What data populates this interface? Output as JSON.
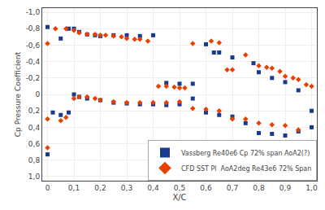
{
  "chart_data": {
    "type": "scatter",
    "xlabel": "X/C",
    "ylabel": "Cp Pressure Coefficient",
    "xlim": [
      -0.02,
      1.02
    ],
    "ylim": [
      1.05,
      -1.05
    ],
    "xticks": [
      0,
      {
        "value": 0.1,
        "label": "0,1"
      },
      {
        "value": 0.2,
        "label": "0,2"
      },
      {
        "value": 0.3,
        "label": "0,3"
      },
      {
        "value": 0.4,
        "label": "0,4"
      },
      {
        "value": 0.5,
        "label": "0,5"
      },
      {
        "value": 0.6,
        "label": "0,6"
      },
      {
        "value": 0.7,
        "label": "0,7"
      },
      {
        "value": 0.8,
        "label": "0,8"
      },
      {
        "value": 0.9,
        "label": "0,9"
      },
      {
        "value": 1,
        "label": "1,0"
      }
    ],
    "yticks": [
      {
        "value": -1,
        "label": "-1,0"
      },
      {
        "value": -0.8,
        "label": "-0,8"
      },
      {
        "value": -0.6,
        "label": "-0,6"
      },
      {
        "value": -0.4,
        "label": "-0,4"
      },
      {
        "value": -0.2,
        "label": "-0,2"
      },
      0,
      {
        "value": 0.2,
        "label": "0,2"
      },
      {
        "value": 0.4,
        "label": "0,4"
      },
      {
        "value": 0.6,
        "label": "0,6"
      },
      {
        "value": 0.8,
        "label": "0,8"
      },
      {
        "value": 1.0,
        "label": "1,0"
      }
    ],
    "grid": true,
    "legend": "lower right",
    "series": [
      {
        "name": "Vassberg Re40e6 Cp 72% span AoA2(?)",
        "color": "#1a3a8f",
        "marker": "square",
        "x": [
          0.0,
          0.05,
          0.08,
          0.1,
          0.12,
          0.15,
          0.18,
          0.2,
          0.25,
          0.3,
          0.35,
          0.4,
          0.45,
          0.5,
          0.55,
          0.6,
          0.63,
          0.65,
          0.7,
          0.78,
          0.8,
          0.85,
          0.9,
          0.95,
          1.0,
          0.0,
          0.02,
          0.05,
          0.08,
          0.1,
          0.12,
          0.15,
          0.2,
          0.25,
          0.3,
          0.35,
          0.4,
          0.45,
          0.5,
          0.55,
          0.6,
          0.65,
          0.7,
          0.75,
          0.8,
          0.85,
          0.9,
          0.95,
          1.0
        ],
        "values": [
          -0.82,
          -0.68,
          -0.8,
          -0.8,
          -0.76,
          -0.73,
          -0.72,
          -0.71,
          -0.72,
          -0.72,
          -0.71,
          -0.72,
          -0.14,
          -0.13,
          -0.13,
          -0.61,
          -0.51,
          -0.51,
          -0.45,
          -0.38,
          -0.27,
          -0.2,
          -0.15,
          -0.05,
          0.2,
          0.73,
          0.22,
          0.25,
          0.22,
          0.0,
          0.03,
          0.05,
          0.07,
          0.1,
          0.11,
          0.12,
          0.12,
          0.13,
          0.12,
          0.05,
          0.22,
          0.25,
          0.27,
          0.35,
          0.47,
          0.48,
          0.5,
          0.45,
          0.4
        ]
      },
      {
        "name": "CFD SST Pl  AoA2deg Re43e6 72% Span",
        "color": "#e84000",
        "marker": "diamond",
        "x": [
          0.0,
          0.03,
          0.07,
          0.1,
          0.12,
          0.15,
          0.18,
          0.2,
          0.22,
          0.25,
          0.28,
          0.3,
          0.33,
          0.35,
          0.38,
          0.42,
          0.45,
          0.48,
          0.5,
          0.52,
          0.55,
          0.62,
          0.65,
          0.68,
          0.7,
          0.75,
          0.8,
          0.83,
          0.85,
          0.88,
          0.9,
          0.93,
          0.95,
          0.98,
          1.0,
          0.0,
          0.0,
          0.05,
          0.07,
          0.1,
          0.12,
          0.15,
          0.18,
          0.2,
          0.25,
          0.3,
          0.35,
          0.4,
          0.45,
          0.5,
          0.55,
          0.6,
          0.65,
          0.7,
          0.75,
          0.8,
          0.85,
          0.9,
          0.95
        ],
        "values": [
          -0.62,
          -0.8,
          -0.8,
          -0.78,
          -0.75,
          -0.73,
          -0.73,
          -0.72,
          -0.72,
          -0.71,
          -0.7,
          -0.68,
          -0.67,
          -0.67,
          -0.65,
          -0.1,
          -0.1,
          -0.09,
          -0.08,
          -0.08,
          -0.62,
          -0.65,
          -0.63,
          -0.3,
          -0.3,
          -0.48,
          -0.35,
          -0.33,
          -0.32,
          -0.28,
          -0.22,
          -0.2,
          -0.18,
          -0.12,
          -0.1,
          0.65,
          0.3,
          0.32,
          0.28,
          0.05,
          0.03,
          0.03,
          0.05,
          0.07,
          0.09,
          0.1,
          0.1,
          0.1,
          0.1,
          0.09,
          0.17,
          0.18,
          0.2,
          0.3,
          0.3,
          0.35,
          0.37,
          0.38,
          0.43
        ]
      }
    ]
  }
}
